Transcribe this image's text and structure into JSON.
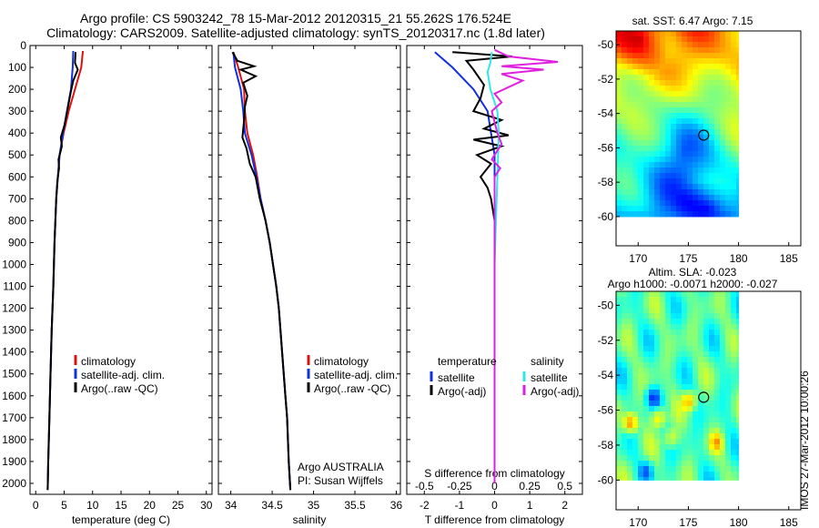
{
  "header": {
    "title_line1": "Argo profile: CS 5903242_78 15-Mar-2012 20120315_21 55.262S 176.524E",
    "title_line2": "Climatology: CARS2009. Satellite-adjusted climatology: synTS_20120317.nc (1.8d later)"
  },
  "credit": "IMOS 27-Mar-2012 10:00:26",
  "colors": {
    "climatology": "#e01010",
    "satellite": "#1030e0",
    "argo": "#000000",
    "salinity_satellite": "#30e8e8",
    "salinity_argo": "#e020e0"
  },
  "chart_data": [
    {
      "type": "line",
      "id": "temperature",
      "xlabel": "temperature (deg C)",
      "xlim": [
        -1,
        31
      ],
      "xticks": [
        0,
        5,
        10,
        15,
        20,
        25,
        30
      ],
      "ylim": [
        2050,
        0
      ],
      "yticks": [
        0,
        100,
        200,
        300,
        400,
        500,
        600,
        700,
        800,
        900,
        1000,
        1100,
        1200,
        1300,
        1400,
        1500,
        1600,
        1700,
        1800,
        1900,
        2000
      ],
      "legend": [
        "climatology",
        "satellite-adj. clim.",
        "Argo(..raw -QC)"
      ],
      "series": [
        {
          "name": "climatology",
          "color_key": "climatology",
          "points": [
            [
              8.3,
              25
            ],
            [
              8.0,
              100
            ],
            [
              6.9,
              200
            ],
            [
              5.8,
              300
            ],
            [
              4.9,
              400
            ],
            [
              4.2,
              500
            ],
            [
              3.9,
              600
            ],
            [
              3.6,
              700
            ],
            [
              3.3,
              900
            ],
            [
              3.1,
              1100
            ],
            [
              2.8,
              1300
            ],
            [
              2.6,
              1500
            ],
            [
              2.4,
              1700
            ],
            [
              2.2,
              1900
            ],
            [
              2.1,
              2030
            ]
          ]
        },
        {
          "name": "satellite-adj. clim.",
          "color_key": "satellite",
          "points": [
            [
              6.6,
              25
            ],
            [
              6.5,
              100
            ],
            [
              6.2,
              200
            ],
            [
              5.5,
              300
            ],
            [
              4.8,
              400
            ],
            [
              4.2,
              500
            ],
            [
              3.9,
              600
            ],
            [
              3.6,
              700
            ],
            [
              3.3,
              900
            ],
            [
              3.1,
              1100
            ],
            [
              2.8,
              1300
            ],
            [
              2.6,
              1500
            ],
            [
              2.4,
              1700
            ],
            [
              2.2,
              1900
            ],
            [
              2.1,
              2030
            ]
          ]
        },
        {
          "name": "Argo(..raw -QC)",
          "color_key": "argo",
          "points": [
            [
              7.0,
              30
            ],
            [
              6.9,
              80
            ],
            [
              7.4,
              110
            ],
            [
              6.6,
              160
            ],
            [
              6.1,
              220
            ],
            [
              5.6,
              290
            ],
            [
              5.1,
              360
            ],
            [
              4.4,
              420
            ],
            [
              4.6,
              460
            ],
            [
              4.0,
              520
            ],
            [
              4.1,
              560
            ],
            [
              3.8,
              620
            ],
            [
              3.6,
              700
            ],
            [
              3.3,
              900
            ],
            [
              3.1,
              1100
            ],
            [
              2.8,
              1300
            ],
            [
              2.6,
              1500
            ],
            [
              2.4,
              1700
            ],
            [
              2.2,
              1900
            ],
            [
              2.1,
              2030
            ]
          ]
        }
      ]
    },
    {
      "type": "line",
      "id": "salinity",
      "xlabel": "salinity",
      "xlim": [
        33.85,
        36.05
      ],
      "xticks": [
        34,
        34.5,
        35,
        35.5,
        36
      ],
      "ylim": [
        2050,
        0
      ],
      "legend": [
        "climatology",
        "satellite-adj. clim.",
        "Argo(..raw -QC)"
      ],
      "annotation": [
        "Argo AUSTRALIA",
        "PI: Susan Wijffels"
      ],
      "series": [
        {
          "name": "climatology",
          "color_key": "climatology",
          "points": [
            [
              34.03,
              30
            ],
            [
              34.09,
              100
            ],
            [
              34.16,
              200
            ],
            [
              34.17,
              300
            ],
            [
              34.2,
              400
            ],
            [
              34.27,
              500
            ],
            [
              34.32,
              600
            ],
            [
              34.36,
              700
            ],
            [
              34.42,
              800
            ],
            [
              34.47,
              900
            ],
            [
              34.51,
              1000
            ],
            [
              34.55,
              1100
            ],
            [
              34.58,
              1200
            ],
            [
              34.6,
              1300
            ],
            [
              34.62,
              1400
            ],
            [
              34.64,
              1500
            ],
            [
              34.66,
              1600
            ],
            [
              34.68,
              1700
            ],
            [
              34.69,
              1800
            ],
            [
              34.7,
              1900
            ],
            [
              34.72,
              2030
            ]
          ]
        },
        {
          "name": "satellite-adj. clim.",
          "color_key": "satellite",
          "points": [
            [
              34.03,
              30
            ],
            [
              34.05,
              100
            ],
            [
              34.12,
              200
            ],
            [
              34.15,
              300
            ],
            [
              34.17,
              400
            ],
            [
              34.25,
              500
            ],
            [
              34.31,
              600
            ],
            [
              34.36,
              700
            ],
            [
              34.42,
              800
            ],
            [
              34.47,
              900
            ],
            [
              34.51,
              1000
            ],
            [
              34.55,
              1100
            ],
            [
              34.58,
              1200
            ],
            [
              34.6,
              1300
            ],
            [
              34.62,
              1400
            ],
            [
              34.64,
              1500
            ],
            [
              34.66,
              1600
            ],
            [
              34.68,
              1700
            ],
            [
              34.69,
              1800
            ],
            [
              34.7,
              1900
            ],
            [
              34.72,
              2030
            ]
          ]
        },
        {
          "name": "Argo(..raw -QC)",
          "color_key": "argo",
          "points": [
            [
              34.02,
              30
            ],
            [
              34.08,
              70
            ],
            [
              34.28,
              95
            ],
            [
              34.12,
              110
            ],
            [
              34.3,
              140
            ],
            [
              34.15,
              170
            ],
            [
              34.2,
              230
            ],
            [
              34.17,
              280
            ],
            [
              34.16,
              340
            ],
            [
              34.14,
              420
            ],
            [
              34.19,
              470
            ],
            [
              34.23,
              540
            ],
            [
              34.3,
              600
            ],
            [
              34.35,
              700
            ],
            [
              34.42,
              800
            ],
            [
              34.47,
              900
            ],
            [
              34.51,
              1000
            ],
            [
              34.55,
              1100
            ],
            [
              34.58,
              1200
            ],
            [
              34.6,
              1300
            ],
            [
              34.62,
              1400
            ],
            [
              34.64,
              1500
            ],
            [
              34.66,
              1600
            ],
            [
              34.68,
              1700
            ],
            [
              34.69,
              1800
            ],
            [
              34.7,
              1900
            ],
            [
              34.72,
              2030
            ]
          ]
        }
      ]
    },
    {
      "type": "line",
      "id": "difference",
      "xlabel": "T difference from climatology",
      "xlabel_top": "S difference from climatology",
      "xlim": [
        -2.5,
        2.5
      ],
      "xticks_t": [
        -2,
        -1,
        0,
        1,
        2
      ],
      "xticks_s": [
        -0.5,
        -0.25,
        0,
        0.25,
        0.5
      ],
      "s_xlim": [
        -0.625,
        0.625
      ],
      "ylim": [
        2050,
        0
      ],
      "legend_temperature_heading": "temperature",
      "legend_salinity_heading": "salinity",
      "legend_temperature": [
        "satellite",
        "Argo(-adj)"
      ],
      "legend_salinity": [
        "satellite",
        "Argo(-adj)"
      ],
      "series": [
        {
          "name": "satellite",
          "group": "temperature",
          "color_key": "satellite",
          "points": [
            [
              -1.7,
              30
            ],
            [
              -1.2,
              100
            ],
            [
              -0.6,
              200
            ],
            [
              -0.2,
              300
            ],
            [
              -0.1,
              400
            ],
            [
              0,
              500
            ],
            [
              0,
              700
            ],
            [
              0,
              900
            ],
            [
              0,
              1200
            ],
            [
              0,
              1500
            ],
            [
              0,
              2000
            ]
          ]
        },
        {
          "name": "Argo(-adj)",
          "group": "temperature",
          "color_key": "argo",
          "points": [
            [
              -1.2,
              30
            ],
            [
              0.5,
              50
            ],
            [
              -0.8,
              70
            ],
            [
              -0.6,
              110
            ],
            [
              -0.3,
              180
            ],
            [
              -0.4,
              240
            ],
            [
              -0.6,
              300
            ],
            [
              0.2,
              340
            ],
            [
              -0.3,
              380
            ],
            [
              0.4,
              410
            ],
            [
              -0.6,
              430
            ],
            [
              0.2,
              460
            ],
            [
              -0.5,
              500
            ],
            [
              -0.1,
              540
            ],
            [
              -0.4,
              600
            ],
            [
              -0.2,
              650
            ],
            [
              -0.1,
              700
            ],
            [
              0,
              800
            ],
            [
              0,
              1000
            ],
            [
              0,
              1500
            ],
            [
              0,
              2000
            ]
          ]
        },
        {
          "name": "satellite",
          "group": "salinity",
          "color_key": "salinity_satellite",
          "points": [
            [
              -0.02,
              30
            ],
            [
              -0.03,
              80
            ],
            [
              -0.05,
              120
            ],
            [
              -0.03,
              200
            ],
            [
              0.02,
              300
            ],
            [
              0.03,
              400
            ],
            [
              0.02,
              600
            ],
            [
              0.01,
              800
            ],
            [
              0,
              1000
            ],
            [
              0,
              2000
            ]
          ]
        },
        {
          "name": "Argo(-adj)",
          "group": "salinity",
          "color_key": "salinity_argo",
          "points": [
            [
              0,
              20
            ],
            [
              0.1,
              50
            ],
            [
              0.45,
              75
            ],
            [
              0.05,
              95
            ],
            [
              0.35,
              110
            ],
            [
              0.05,
              130
            ],
            [
              0.2,
              160
            ],
            [
              0,
              220
            ],
            [
              0.05,
              260
            ],
            [
              -0.02,
              300
            ],
            [
              0.02,
              400
            ],
            [
              0.05,
              450
            ],
            [
              -0.02,
              520
            ],
            [
              0.04,
              560
            ],
            [
              0,
              600
            ],
            [
              0,
              1000
            ],
            [
              0,
              2000
            ]
          ]
        }
      ]
    }
  ],
  "maps": {
    "sst": {
      "title": "sat. SST: 6.47 Argo: 7.15",
      "kind": "sst",
      "xticks": [
        170,
        175,
        180,
        185
      ],
      "yticks": [
        -50,
        -52,
        -54,
        -56,
        -58,
        -60
      ],
      "lon_range": [
        167.8,
        186.2
      ],
      "lat_range": [
        -61.7,
        -49.2
      ],
      "data_lon_range": [
        167.8,
        180
      ],
      "data_lat_range": [
        -60,
        -49.2
      ],
      "argo_marker": [
        176.524,
        -55.262
      ]
    },
    "sla": {
      "title_line1": "Altim. SLA: -0.023",
      "title_line2": "Argo h1000: -0.0071 h2000: -0.027",
      "kind": "sla",
      "xticks": [
        170,
        175,
        180,
        185
      ],
      "yticks": [
        -50,
        -52,
        -54,
        -56,
        -58,
        -60
      ],
      "lon_range": [
        167.8,
        186.2
      ],
      "lat_range": [
        -61.7,
        -49.2
      ],
      "data_lon_range": [
        167.8,
        180
      ],
      "data_lat_range": [
        -60,
        -49.2
      ],
      "argo_marker": [
        176.524,
        -55.262
      ]
    }
  }
}
